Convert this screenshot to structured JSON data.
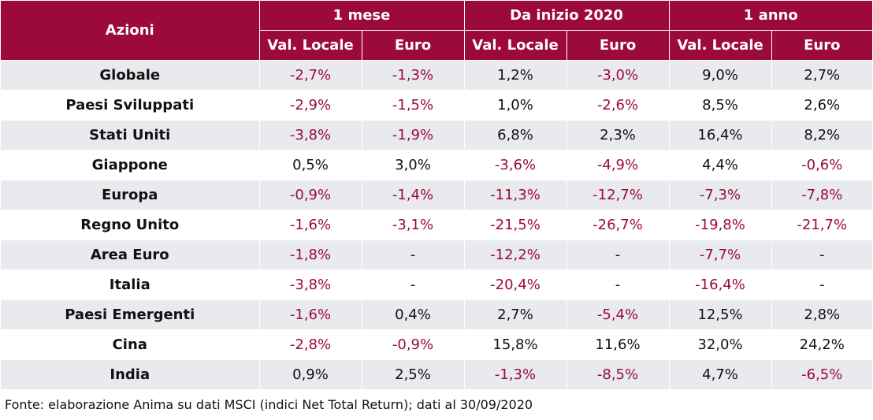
{
  "table": {
    "corner_header": "Azioni",
    "period_headers": [
      "1 mese",
      "Da inizio 2020",
      "1 anno"
    ],
    "sub_headers": [
      "Val. Locale",
      "Euro",
      "Val. Locale",
      "Euro",
      "Val. Locale",
      "Euro"
    ],
    "rows": [
      {
        "label": "Globale",
        "values": [
          "-2,7%",
          "-1,3%",
          "1,2%",
          "-3,0%",
          "9,0%",
          "2,7%"
        ]
      },
      {
        "label": "Paesi Sviluppati",
        "values": [
          "-2,9%",
          "-1,5%",
          "1,0%",
          "-2,6%",
          "8,5%",
          "2,6%"
        ]
      },
      {
        "label": "Stati Uniti",
        "values": [
          "-3,8%",
          "-1,9%",
          "6,8%",
          "2,3%",
          "16,4%",
          "8,2%"
        ]
      },
      {
        "label": "Giappone",
        "values": [
          "0,5%",
          "3,0%",
          "-3,6%",
          "-4,9%",
          "4,4%",
          "-0,6%"
        ]
      },
      {
        "label": "Europa",
        "values": [
          "-0,9%",
          "-1,4%",
          "-11,3%",
          "-12,7%",
          "-7,3%",
          "-7,8%"
        ]
      },
      {
        "label": "Regno Unito",
        "values": [
          "-1,6%",
          "-3,1%",
          "-21,5%",
          "-26,7%",
          "-19,8%",
          "-21,7%"
        ]
      },
      {
        "label": "Area Euro",
        "values": [
          "-1,8%",
          "-",
          "-12,2%",
          "-",
          "-7,7%",
          "-"
        ]
      },
      {
        "label": "Italia",
        "values": [
          "-3,8%",
          "-",
          "-20,4%",
          "-",
          "-16,4%",
          "-"
        ]
      },
      {
        "label": "Paesi Emergenti",
        "values": [
          "-1,6%",
          "0,4%",
          "2,7%",
          "-5,4%",
          "12,5%",
          "2,8%"
        ]
      },
      {
        "label": "Cina",
        "values": [
          "-2,8%",
          "-0,9%",
          "15,8%",
          "11,6%",
          "32,0%",
          "24,2%"
        ]
      },
      {
        "label": "India",
        "values": [
          "0,9%",
          "2,5%",
          "-1,3%",
          "-8,5%",
          "4,7%",
          "-6,5%"
        ]
      }
    ]
  },
  "source_note": "Fonte: elaborazione Anima su dati MSCI (indici Net Total Return); dati al 30/09/2020",
  "colors": {
    "header_bg": "#9c0a3b",
    "negative_text": "#9c0a3b",
    "stripe_bg": "#e8eaed"
  }
}
